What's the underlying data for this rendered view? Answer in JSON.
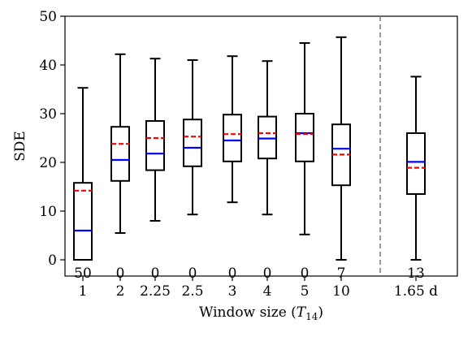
{
  "chart_data": {
    "type": "box",
    "ylabel": "SDE",
    "xlabel": {
      "prefix": "Window size (",
      "var": "T",
      "sub": "14",
      "suffix": ")"
    },
    "ylim": [
      0,
      50
    ],
    "yticks": [
      0,
      10,
      20,
      30,
      40,
      50
    ],
    "grid": false,
    "separator_after_index": 7,
    "colors": {
      "box": "#000000",
      "median": "#0000ff",
      "mean": "#ff0000",
      "separator": "#808080"
    },
    "boxes": [
      {
        "label": "1",
        "whisker_low": 0,
        "q1": 0,
        "median": 6.0,
        "q3": 15.8,
        "whisker_high": 35.3,
        "mean": 14.2,
        "count": "50"
      },
      {
        "label": "2",
        "whisker_low": 5.5,
        "q1": 16.2,
        "median": 20.5,
        "q3": 27.3,
        "whisker_high": 42.2,
        "mean": 23.8,
        "count": "0"
      },
      {
        "label": "2.25",
        "whisker_low": 8.0,
        "q1": 18.4,
        "median": 21.8,
        "q3": 28.5,
        "whisker_high": 41.3,
        "mean": 25.0,
        "count": "0"
      },
      {
        "label": "2.5",
        "whisker_low": 9.3,
        "q1": 19.2,
        "median": 23.0,
        "q3": 28.8,
        "whisker_high": 41.0,
        "mean": 25.3,
        "count": "0"
      },
      {
        "label": "3",
        "whisker_low": 11.8,
        "q1": 20.2,
        "median": 24.5,
        "q3": 29.8,
        "whisker_high": 41.8,
        "mean": 25.8,
        "count": "0"
      },
      {
        "label": "4",
        "whisker_low": 9.3,
        "q1": 20.8,
        "median": 24.9,
        "q3": 29.4,
        "whisker_high": 40.8,
        "mean": 26.0,
        "count": "0"
      },
      {
        "label": "5",
        "whisker_low": 5.2,
        "q1": 20.2,
        "median": 26.0,
        "q3": 30.0,
        "whisker_high": 44.5,
        "mean": 25.8,
        "count": "0"
      },
      {
        "label": "10",
        "whisker_low": 0,
        "q1": 15.3,
        "median": 22.8,
        "q3": 27.8,
        "whisker_high": 45.7,
        "mean": 21.6,
        "count": "7"
      },
      {
        "label": "1.65 d",
        "whisker_low": 0,
        "q1": 13.5,
        "median": 20.1,
        "q3": 26.0,
        "whisker_high": 37.6,
        "mean": 18.9,
        "count": "13"
      }
    ]
  }
}
